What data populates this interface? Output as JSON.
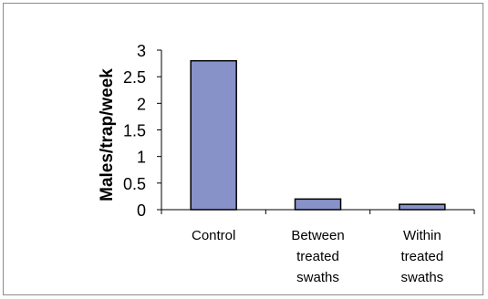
{
  "chart_data": {
    "type": "bar",
    "title": "",
    "xlabel": "",
    "ylabel": "Males/trap/week",
    "categories": [
      [
        "Control"
      ],
      [
        "Between",
        "treated",
        "swaths"
      ],
      [
        "Within",
        "treated",
        "swaths"
      ]
    ],
    "values": [
      2.8,
      0.2,
      0.1
    ],
    "ylim": [
      0,
      3
    ],
    "yticks": [
      "0",
      "0.5",
      "1",
      "1.5",
      "2",
      "2.5",
      "3"
    ],
    "grid": false,
    "legend": "none",
    "bar_color": "#8792c8",
    "bar_edge_color": "#000000"
  }
}
